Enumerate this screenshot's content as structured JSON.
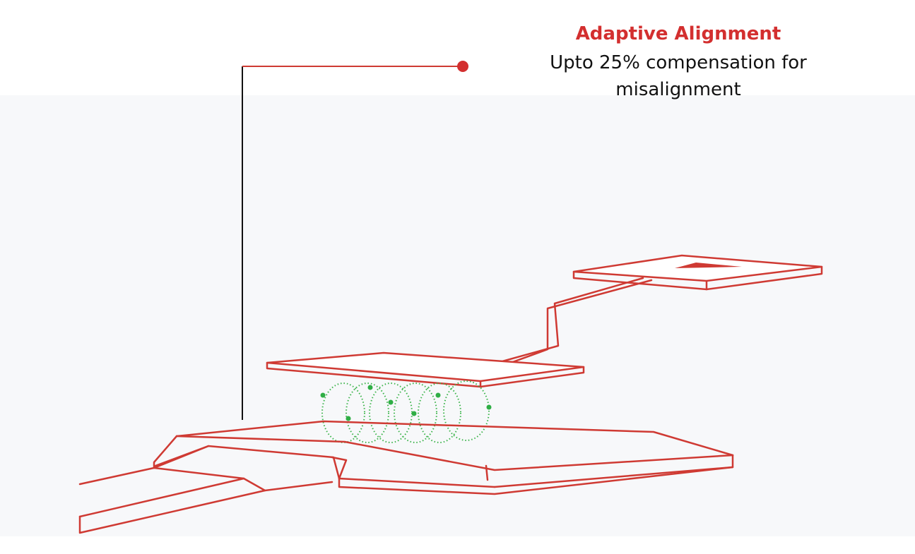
{
  "callout": {
    "title": "Adaptive Alignment",
    "description_line1": "Upto 25% compensation for",
    "description_line2": "misalignment"
  },
  "colors": {
    "accent": "#d32f2f",
    "outline": "#cf3a33",
    "field": "#3cb44b",
    "leader_vertical": "#111111",
    "text": "#111111"
  }
}
